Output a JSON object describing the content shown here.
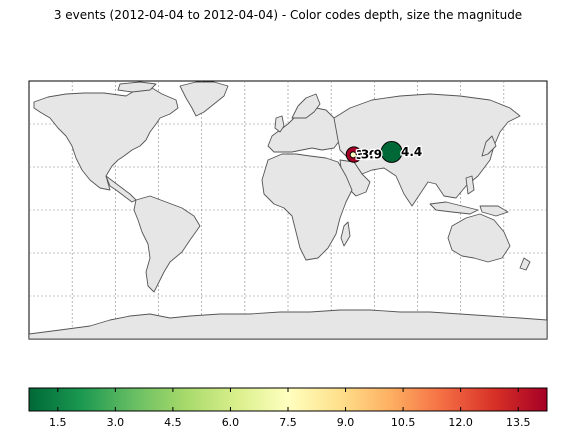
{
  "title": "3 events (2012-04-04 to 2012-04-04) - Color codes depth, size the magnitude",
  "map": {
    "background": "#ffffff",
    "land_color": "#e6e6e6",
    "coast_color": "#555555",
    "grid": true,
    "events": [
      {
        "lat": 38.5,
        "lon": 45.3,
        "magnitude": 3.0,
        "label": "3.0",
        "depth_color": "#ffffc0"
      },
      {
        "lat": 38.7,
        "lon": 45.8,
        "magnitude": 3.9,
        "label": "3.9",
        "depth_color": "#a50026"
      },
      {
        "lat": 40.5,
        "lon": 72.0,
        "magnitude": 4.4,
        "label": "4.4",
        "depth_color": "#006837"
      }
    ]
  },
  "colorbar": {
    "tick_labels": [
      "1.5",
      "3.0",
      "4.5",
      "6.0",
      "7.5",
      "9.0",
      "10.5",
      "12.0",
      "13.5"
    ],
    "colors": [
      "#006837",
      "#1a9850",
      "#66bd63",
      "#a6d96a",
      "#d9ef8b",
      "#ffffbf",
      "#fee08b",
      "#fdae61",
      "#f46d43",
      "#d73027",
      "#a50026"
    ]
  }
}
